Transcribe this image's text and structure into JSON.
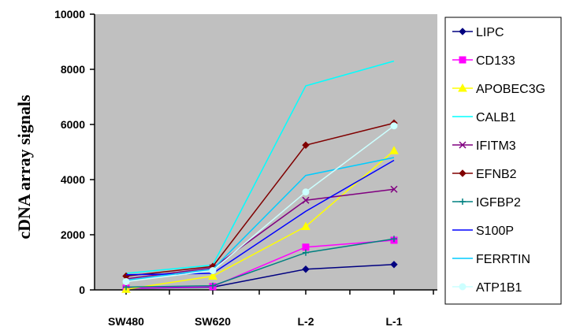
{
  "chart_data": {
    "type": "line",
    "title": "",
    "xlabel": "",
    "ylabel": "cDNA array signals",
    "categories": [
      "SW480",
      "SW620",
      "L-2",
      "L-1"
    ],
    "ylim": [
      0,
      10000
    ],
    "yticks": [
      "0",
      "2000",
      "4000",
      "6000",
      "8000",
      "10000"
    ],
    "grid": false,
    "plot_background": "#C0C0C0",
    "legend_position": "right",
    "series": [
      {
        "name": "LIPC",
        "color": "#000080",
        "marker": "diamond",
        "values": [
          50,
          100,
          750,
          920
        ]
      },
      {
        "name": "CD133",
        "color": "#FF00FF",
        "marker": "square",
        "values": [
          60,
          120,
          1550,
          1800
        ]
      },
      {
        "name": "APOBEC3G",
        "color": "#FFFF00",
        "marker": "triangle",
        "values": [
          20,
          500,
          2300,
          5050
        ]
      },
      {
        "name": "CALB1",
        "color": "#00FFFF",
        "marker": "none",
        "values": [
          600,
          900,
          7400,
          8300
        ]
      },
      {
        "name": "IFITM3",
        "color": "#800080",
        "marker": "x",
        "values": [
          400,
          800,
          3250,
          3650
        ]
      },
      {
        "name": "EFNB2",
        "color": "#800000",
        "marker": "diamond",
        "values": [
          500,
          850,
          5250,
          6050
        ]
      },
      {
        "name": "IGFBP2",
        "color": "#008080",
        "marker": "plus",
        "values": [
          100,
          150,
          1350,
          1850
        ]
      },
      {
        "name": "S100P",
        "color": "#0000FF",
        "marker": "none",
        "values": [
          550,
          600,
          2850,
          4700
        ]
      },
      {
        "name": "FERRTIN",
        "color": "#00CCFF",
        "marker": "none",
        "values": [
          350,
          750,
          4150,
          4800
        ]
      },
      {
        "name": "ATP1B1",
        "color": "#CCFFFF",
        "marker": "circle",
        "values": [
          300,
          700,
          3550,
          5950
        ]
      }
    ]
  }
}
